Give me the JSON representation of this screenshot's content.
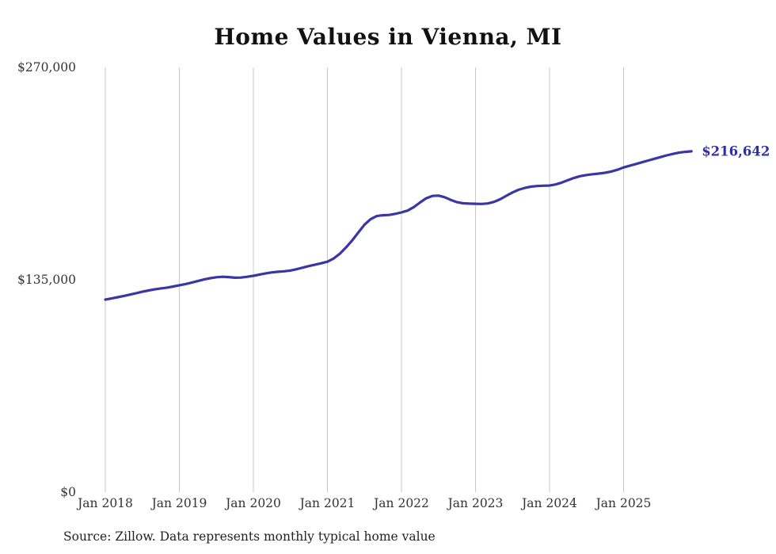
{
  "title": "Home Values in Vienna, MI",
  "source": "Source: Zillow. Data represents monthly typical home value",
  "colors": {
    "line": "#3b36a5",
    "end_label": "#2f2fa2",
    "grid": "#c9c9c9",
    "tick_text": "#333333"
  },
  "chart_data": {
    "type": "line",
    "title": "Home Values in Vienna, MI",
    "xlabel": "",
    "ylabel": "",
    "ylim": [
      0,
      270000
    ],
    "grid": "vertical-only",
    "legend": "none",
    "x_start": "2018-01",
    "x_interval": "monthly",
    "x_tick_labels": [
      "Jan 2018",
      "Jan 2019",
      "Jan 2020",
      "Jan 2021",
      "Jan 2022",
      "Jan 2023",
      "Jan 2024",
      "Jan 2025"
    ],
    "y_ticks": [
      {
        "label": "$0",
        "value": 0
      },
      {
        "label": "$135,000",
        "value": 135000
      },
      {
        "label": "$270,000",
        "value": 270000
      }
    ],
    "end_value_label": "$216,642",
    "end_value": 216642,
    "series": [
      {
        "name": "Typical home value",
        "values": [
          122400,
          123100,
          123900,
          124700,
          125600,
          126500,
          127400,
          128200,
          128900,
          129500,
          130000,
          130700,
          131500,
          132300,
          133200,
          134200,
          135200,
          136000,
          136600,
          136900,
          136700,
          136300,
          136400,
          136900,
          137500,
          138300,
          139100,
          139700,
          140100,
          140400,
          140900,
          141700,
          142700,
          143700,
          144600,
          145500,
          146500,
          148500,
          151500,
          155500,
          160000,
          165000,
          170000,
          173500,
          175500,
          176000,
          176200,
          176900,
          177800,
          179000,
          181200,
          184100,
          186800,
          188300,
          188500,
          187500,
          185800,
          184300,
          183600,
          183400,
          183300,
          183200,
          183500,
          184500,
          186200,
          188400,
          190500,
          192200,
          193400,
          194200,
          194600,
          194800,
          194900,
          195600,
          196800,
          198300,
          199800,
          200900,
          201600,
          202100,
          202500,
          203000,
          203800,
          204900,
          206400,
          207500,
          208600,
          209700,
          210800,
          211900,
          213000,
          214100,
          215000,
          215800,
          216300,
          216642
        ]
      }
    ]
  }
}
